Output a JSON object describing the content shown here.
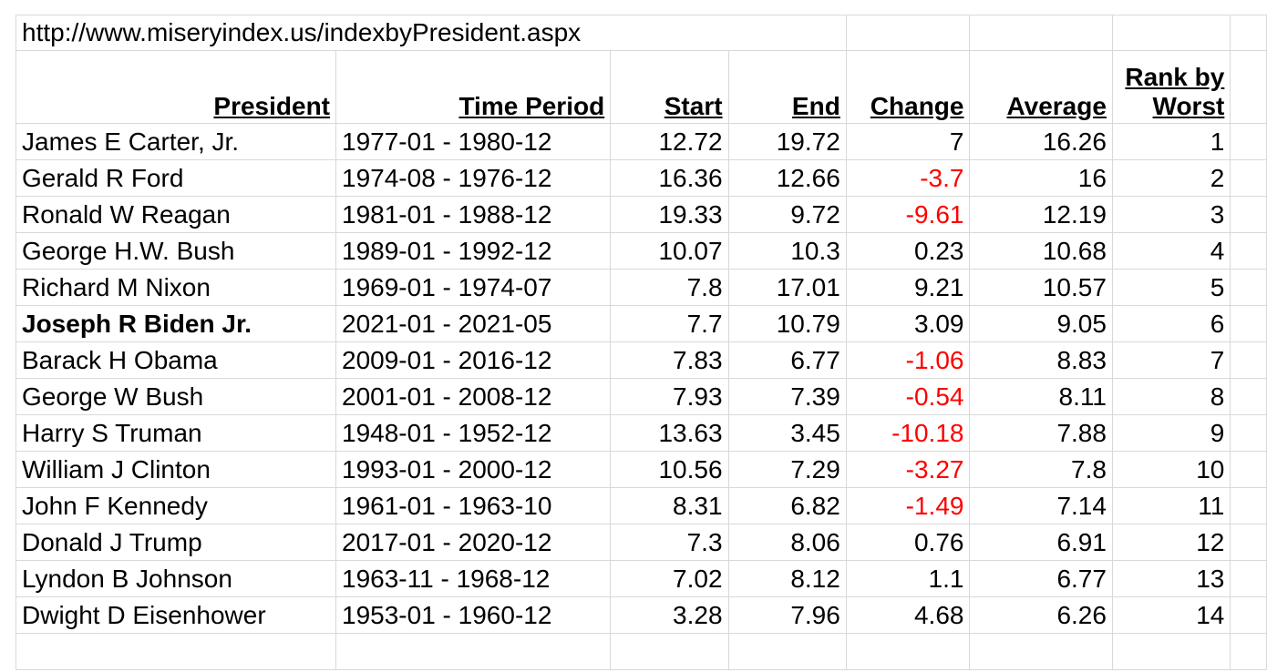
{
  "url": "http://www.miseryindex.us/indexbyPresident.aspx",
  "table": {
    "headers": [
      "President",
      "Time Period",
      "Start",
      "End",
      "Change",
      "Average",
      "Rank by Worst"
    ],
    "rows": [
      [
        "James E Carter, Jr.",
        "1977-01 - 1980-12",
        12.72,
        19.72,
        7,
        16.26,
        1
      ],
      [
        "Gerald R Ford",
        "1974-08 - 1976-12",
        16.36,
        12.66,
        -3.7,
        16,
        2
      ],
      [
        "Ronald W Reagan",
        "1981-01 - 1988-12",
        19.33,
        9.72,
        -9.61,
        12.19,
        3
      ],
      [
        "George H.W. Bush",
        "1989-01 - 1992-12",
        10.07,
        10.3,
        0.23,
        10.68,
        4
      ],
      [
        "Richard M Nixon",
        "1969-01 - 1974-07",
        7.8,
        17.01,
        9.21,
        10.57,
        5
      ],
      [
        "Joseph R Biden Jr.",
        "2021-01 - 2021-05",
        7.7,
        10.79,
        3.09,
        9.05,
        6
      ],
      [
        "Barack H Obama",
        "2009-01 - 2016-12",
        7.83,
        6.77,
        -1.06,
        8.83,
        7
      ],
      [
        "George W Bush",
        "2001-01 - 2008-12",
        7.93,
        7.39,
        -0.54,
        8.11,
        8
      ],
      [
        "Harry S Truman",
        "1948-01 - 1952-12",
        13.63,
        3.45,
        -10.18,
        7.88,
        9
      ],
      [
        "William J Clinton",
        "1993-01 - 2000-12",
        10.56,
        7.29,
        -3.27,
        7.8,
        10
      ],
      [
        "John F Kennedy",
        "1961-01 - 1963-10",
        8.31,
        6.82,
        -1.49,
        7.14,
        11
      ],
      [
        "Donald J Trump",
        "2017-01 - 2020-12",
        7.3,
        8.06,
        0.76,
        6.91,
        12
      ],
      [
        "Lyndon B Johnson",
        "1963-11 - 1968-12",
        7.02,
        8.12,
        1.1,
        6.77,
        13
      ],
      [
        "Dwight D Eisenhower",
        "1953-01 - 1960-12",
        3.28,
        7.96,
        4.68,
        6.26,
        14
      ]
    ]
  }
}
